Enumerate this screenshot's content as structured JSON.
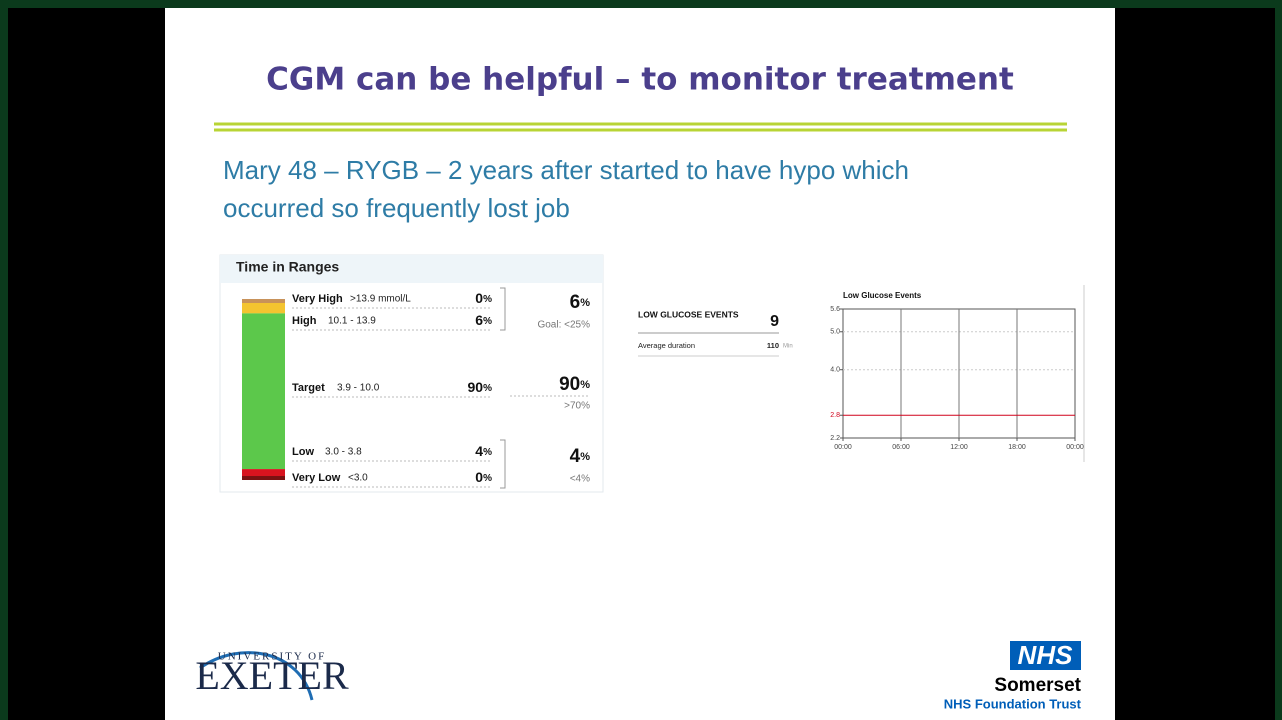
{
  "slide": {
    "title": "CGM can be helpful – to monitor treatment",
    "subtitle": [
      "Mary 48 – RYGB – 2 years after started to have hypo which",
      "occurred so frequently lost job"
    ]
  },
  "time_in_ranges": {
    "title": "Time in Ranges",
    "unit": "%",
    "rows": [
      {
        "label": "Very High",
        "range": ">13.9 mmol/L",
        "value": 0,
        "color": "#c8925a"
      },
      {
        "label": "High",
        "range": "10.1 - 13.9",
        "value": 6,
        "color": "#f4c430"
      },
      {
        "label": "Target",
        "range": "3.9 - 10.0",
        "value": 90,
        "color": "#5cc84b"
      },
      {
        "label": "Low",
        "range": "3.0 - 3.8",
        "value": 4,
        "color": "#d8141f"
      },
      {
        "label": "Very Low",
        "range": "<3.0",
        "value": 0,
        "color": "#7a1212"
      }
    ],
    "groups": [
      {
        "value": 6,
        "goal": "Goal: <25%"
      },
      {
        "value": 90,
        "goal": ">70%"
      },
      {
        "value": 4,
        "goal": "<4%"
      }
    ]
  },
  "low_glucose_events": {
    "label": "LOW GLUCOSE EVENTS",
    "count": 9,
    "duration_label": "Average duration",
    "duration": 110,
    "duration_unit": "Min"
  },
  "chart_data": {
    "type": "line",
    "title": "Low Glucose Events",
    "xlim": [
      0,
      24
    ],
    "xticks": [
      {
        "value": 0,
        "label": "00:00"
      },
      {
        "value": 6,
        "label": "06:00"
      },
      {
        "value": 12,
        "label": "12:00"
      },
      {
        "value": 18,
        "label": "18:00"
      },
      {
        "value": 24,
        "label": "00:00"
      }
    ],
    "ylim": [
      2.2,
      5.6
    ],
    "yticks": [
      2.2,
      2.8,
      {
        "value": 4,
        "label": "4.0"
      },
      {
        "value": 5,
        "label": "5.0"
      },
      5.6
    ],
    "threshold": 2.8,
    "threshold_color": "#d0021b",
    "grid": true
  },
  "logos": {
    "university": [
      "UNIVERSITY OF",
      "EXETER"
    ],
    "nhs": [
      "NHS",
      "Somerset",
      "NHS Foundation Trust"
    ]
  }
}
